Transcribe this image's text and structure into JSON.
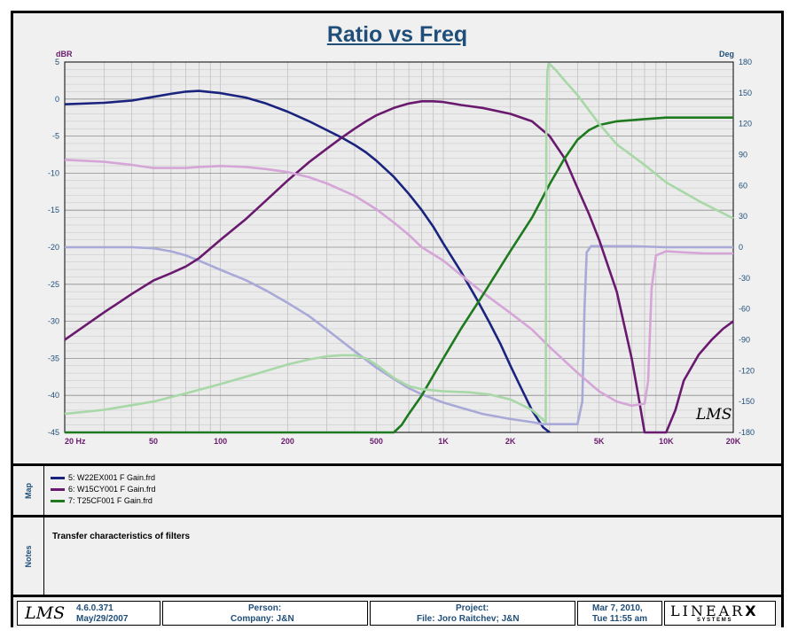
{
  "chart_data": {
    "type": "line",
    "title": "Ratio vs Freq",
    "ylabel_left": "dBR",
    "ylabel_right": "Deg",
    "x_scale": "log",
    "xlim": [
      20,
      20000
    ],
    "ylim_left": [
      -45,
      5
    ],
    "ylim_right": [
      -180,
      180
    ],
    "x_ticks": [
      {
        "v": 20,
        "label": "20  Hz"
      },
      {
        "v": 50,
        "label": "50"
      },
      {
        "v": 100,
        "label": "100"
      },
      {
        "v": 200,
        "label": "200"
      },
      {
        "v": 500,
        "label": "500"
      },
      {
        "v": 1000,
        "label": "1K"
      },
      {
        "v": 2000,
        "label": "2K"
      },
      {
        "v": 5000,
        "label": "5K"
      },
      {
        "v": 10000,
        "label": "10K"
      },
      {
        "v": 20000,
        "label": "20K"
      }
    ],
    "y_ticks_left": [
      "5",
      "0",
      "-5",
      "-10",
      "-15",
      "-20",
      "-25",
      "-30",
      "-35",
      "-40",
      "-45"
    ],
    "y_ticks_right": [
      "180",
      "150",
      "120",
      "90",
      "60",
      "30",
      "0",
      "-30",
      "-60",
      "-90",
      "-120",
      "-150",
      "-180"
    ],
    "grid": true,
    "series": [
      {
        "name": "5:  W22EX001 F Gain.frd",
        "axis": "left",
        "color": "#1a237e",
        "x": [
          20,
          30,
          40,
          50,
          60,
          70,
          80,
          100,
          130,
          160,
          200,
          250,
          300,
          350,
          400,
          450,
          500,
          600,
          700,
          800,
          900,
          1000,
          1200,
          1400,
          1600,
          1800,
          2000,
          2200,
          2500,
          2800,
          3000
        ],
        "y": [
          -0.7,
          -0.5,
          -0.2,
          0.3,
          0.7,
          1,
          1.1,
          0.8,
          0.2,
          -0.6,
          -1.7,
          -3,
          -4.2,
          -5.2,
          -6.2,
          -7.2,
          -8.3,
          -10.5,
          -12.8,
          -15,
          -17.2,
          -19.5,
          -23.3,
          -26.8,
          -30,
          -33,
          -36,
          -38.6,
          -42,
          -44.3,
          -45
        ]
      },
      {
        "name": "5:  W22EX001 F Gain.frd (phase)",
        "axis": "right",
        "color": "#a9a9d8",
        "x": [
          20,
          40,
          50,
          60,
          70,
          80,
          100,
          130,
          160,
          200,
          250,
          300,
          400,
          500,
          600,
          700,
          800,
          1000,
          1200,
          1500,
          2000,
          2500,
          2800,
          3000,
          3500,
          4000,
          4200,
          4300,
          4400,
          4600,
          5000,
          7000,
          10000,
          15000,
          20000
        ],
        "y": [
          0,
          0,
          -1,
          -4,
          -8,
          -13,
          -22,
          -32,
          -42,
          -54,
          -67,
          -80,
          -101,
          -117,
          -128,
          -137,
          -143,
          -151,
          -156,
          -162,
          -167,
          -170,
          -172,
          -172,
          -172,
          -172,
          -150,
          -60,
          -5,
          1,
          1,
          1,
          0,
          0,
          0
        ]
      },
      {
        "name": "6:  W15CY001 F Gain.frd",
        "axis": "left",
        "color": "#6a1a6e",
        "x": [
          20,
          30,
          40,
          50,
          60,
          70,
          80,
          100,
          130,
          160,
          200,
          250,
          300,
          350,
          400,
          450,
          500,
          600,
          700,
          800,
          900,
          1000,
          1200,
          1500,
          2000,
          2500,
          3000,
          3500,
          4000,
          4500,
          5000,
          6000,
          7000,
          7500,
          8000,
          8500,
          9000,
          10000,
          11000,
          12000,
          14000,
          16000,
          18000,
          20000
        ],
        "y": [
          -32.5,
          -28.8,
          -26.3,
          -24.5,
          -23.5,
          -22.6,
          -21.5,
          -19,
          -16.2,
          -13.7,
          -11,
          -8.5,
          -6.7,
          -5.2,
          -4,
          -3,
          -2.2,
          -1.2,
          -0.6,
          -0.3,
          -0.3,
          -0.4,
          -0.8,
          -1.2,
          -2,
          -3,
          -5,
          -8,
          -12,
          -15.5,
          -19,
          -26,
          -35,
          -40,
          -45,
          -45,
          -45,
          -45,
          -42,
          -38,
          -34.5,
          -32.5,
          -31,
          -30
        ]
      },
      {
        "name": "6:  W15CY001 F Gain.frd (phase)",
        "axis": "right",
        "color": "#d4a5d6",
        "x": [
          20,
          30,
          40,
          50,
          60,
          70,
          80,
          100,
          130,
          160,
          200,
          250,
          300,
          400,
          500,
          600,
          700,
          800,
          1000,
          1200,
          1500,
          2000,
          2500,
          3000,
          4000,
          5000,
          6000,
          7000,
          8000,
          8300,
          8600,
          9000,
          10000,
          12000,
          15000,
          20000
        ],
        "y": [
          85,
          83,
          80,
          77,
          77,
          77,
          78,
          79,
          78,
          76,
          73,
          68,
          62,
          50,
          37,
          24,
          12,
          0,
          -13,
          -27,
          -44,
          -64,
          -80,
          -97,
          -122,
          -140,
          -150,
          -154,
          -152,
          -130,
          -40,
          -8,
          -4,
          -5,
          -6,
          -6
        ]
      },
      {
        "name": "7:  T25CF001 F Gain.frd",
        "axis": "left",
        "color": "#1e7a1e",
        "x": [
          20,
          600,
          650,
          700,
          800,
          1000,
          1200,
          1500,
          2000,
          2500,
          3000,
          3500,
          4000,
          4500,
          5000,
          6000,
          8000,
          10000,
          15000,
          20000
        ],
        "y": [
          -45,
          -45,
          -44,
          -42.5,
          -40,
          -35,
          -31,
          -26.5,
          -20.5,
          -16,
          -11.5,
          -8,
          -5.5,
          -4.2,
          -3.5,
          -3,
          -2.7,
          -2.5,
          -2.5,
          -2.5
        ]
      },
      {
        "name": "7:  T25CF001 F Gain.frd (phase)",
        "axis": "right",
        "color": "#a8d8a8",
        "x": [
          20,
          30,
          50,
          70,
          100,
          150,
          200,
          250,
          300,
          350,
          400,
          450,
          500,
          600,
          700,
          800,
          1000,
          1300,
          1600,
          2000,
          2500,
          2880,
          2900,
          2930,
          2960,
          3000,
          3200,
          3500,
          4000,
          5000,
          6000,
          8000,
          10000,
          14000,
          20000
        ],
        "y": [
          -162,
          -158,
          -150,
          -142,
          -133,
          -122,
          -114,
          -109,
          -106,
          -105,
          -105,
          -108,
          -114,
          -127,
          -135,
          -138,
          -140,
          -141,
          -143,
          -148,
          -158,
          -170,
          120,
          170,
          178,
          178,
          172,
          162,
          148,
          120,
          100,
          80,
          63,
          45,
          28
        ]
      }
    ]
  },
  "map_panel": {
    "label": "Map",
    "entries": [
      {
        "text": "5:  W22EX001 F Gain.frd",
        "color": "#1a237e"
      },
      {
        "text": "6:  W15CY001 F Gain.frd",
        "color": "#6a1a6e"
      },
      {
        "text": "7:  T25CF001 F Gain.frd",
        "color": "#1e7a1e"
      }
    ]
  },
  "notes_panel": {
    "label": "Notes",
    "text": "Transfer characteristics of filters"
  },
  "footer": {
    "logo": "LMS",
    "version": "4.6.0.371",
    "version_date": "May/29/2007",
    "person_label": "Person:",
    "company": "Company:  J&N",
    "project_label": "Project:",
    "file": "File: Joro Raitchev; J&N",
    "date": "Mar  7, 2010,",
    "time": "Tue 11:55 am",
    "brand": "LINEAR",
    "brand_x": "X",
    "brand_sub": "S Y S T E M S"
  }
}
